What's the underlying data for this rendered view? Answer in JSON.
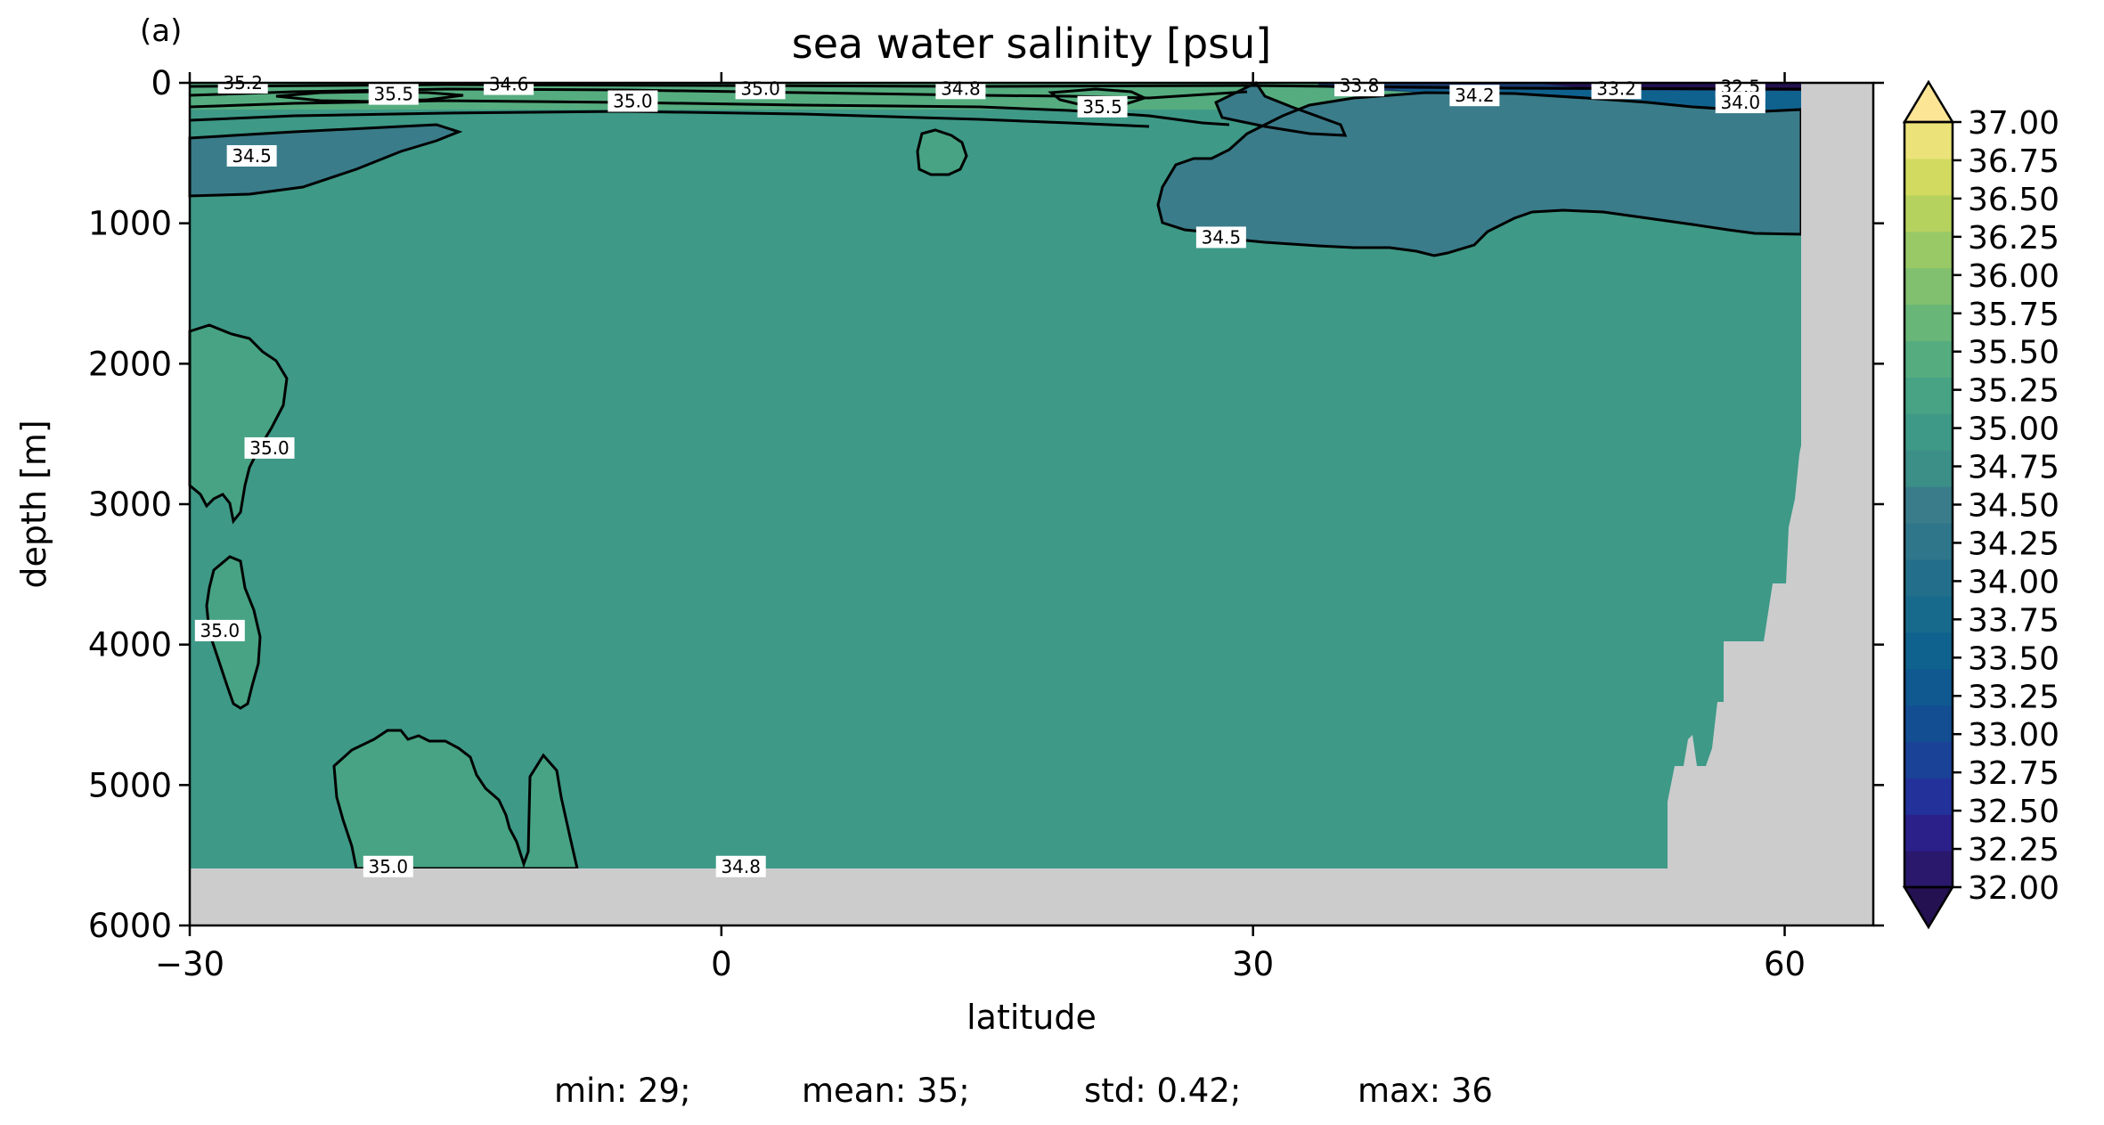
{
  "panel_label": "(a)",
  "stats": {
    "min": "min: 29;",
    "mean": "mean: 35;",
    "std": "std: 0.42;",
    "max": "max: 36"
  },
  "chart_data": {
    "type": "heatmap",
    "subtype": "filled contour section",
    "title": "sea water salinity [psu]",
    "xlabel": "latitude",
    "ylabel": "depth [m]",
    "xlim": [
      -30,
      65
    ],
    "ylim": [
      6000,
      0
    ],
    "y_inverted": true,
    "x_ticks": [
      -30,
      0,
      30,
      60
    ],
    "x_tick_labels": [
      "−30",
      "0",
      "30",
      "60"
    ],
    "y_ticks": [
      0,
      1000,
      2000,
      3000,
      4000,
      5000,
      6000
    ],
    "y_tick_labels": [
      "0",
      "1000",
      "2000",
      "3000",
      "4000",
      "5000",
      "6000"
    ],
    "colorbar": {
      "colormap": "haline",
      "min": 32.0,
      "max": 37.0,
      "step": 0.25,
      "extend": "both",
      "tick_labels": [
        "32.00",
        "32.25",
        "32.50",
        "32.75",
        "33.00",
        "33.25",
        "33.50",
        "33.75",
        "34.00",
        "34.25",
        "34.50",
        "34.75",
        "35.00",
        "35.25",
        "35.50",
        "35.75",
        "36.00",
        "36.25",
        "36.50",
        "36.75",
        "37.00"
      ],
      "colors": [
        "#2a186c",
        "#2b1f8a",
        "#23329a",
        "#1a4297",
        "#134e93",
        "#0f5990",
        "#10628e",
        "#186a8c",
        "#236f8b",
        "#2f768b",
        "#3a7c8a",
        "#3c8f87",
        "#3e9987",
        "#47a384",
        "#55ad7f",
        "#68b778",
        "#80c06f",
        "#99c966",
        "#b6d25e",
        "#d2db5f",
        "#ebe37a"
      ],
      "under_color": "#231151",
      "over_color": "#fde596"
    },
    "background_salinity": 34.75,
    "land_mask_color": "#cccccc",
    "contour_labels": [
      {
        "text": "35.2",
        "lat": -27,
        "depth": 0
      },
      {
        "text": "35.5",
        "lat": -18.5,
        "depth": 80
      },
      {
        "text": "34.6",
        "lat": -12,
        "depth": 10
      },
      {
        "text": "35.0",
        "lat": -5,
        "depth": 130
      },
      {
        "text": "35.0",
        "lat": 2.2,
        "depth": 40
      },
      {
        "text": "34.8",
        "lat": 13.5,
        "depth": 40
      },
      {
        "text": "35.5",
        "lat": 21.5,
        "depth": 170
      },
      {
        "text": "33.8",
        "lat": 36,
        "depth": 20
      },
      {
        "text": "34.2",
        "lat": 42.5,
        "depth": 90
      },
      {
        "text": "33.2",
        "lat": 50.5,
        "depth": 40
      },
      {
        "text": "32.5",
        "lat": 57.5,
        "depth": 30
      },
      {
        "text": "34.0",
        "lat": 57.5,
        "depth": 140
      },
      {
        "text": "34.5",
        "lat": -26.5,
        "depth": 520
      },
      {
        "text": "34.5",
        "lat": 28.2,
        "depth": 1100
      },
      {
        "text": "35.0",
        "lat": -25.5,
        "depth": 2600
      },
      {
        "text": "35.0",
        "lat": -28.3,
        "depth": 3900
      },
      {
        "text": "35.0",
        "lat": -18.8,
        "depth": 5580
      },
      {
        "text": "34.8",
        "lat": 1.1,
        "depth": 5580
      }
    ]
  }
}
